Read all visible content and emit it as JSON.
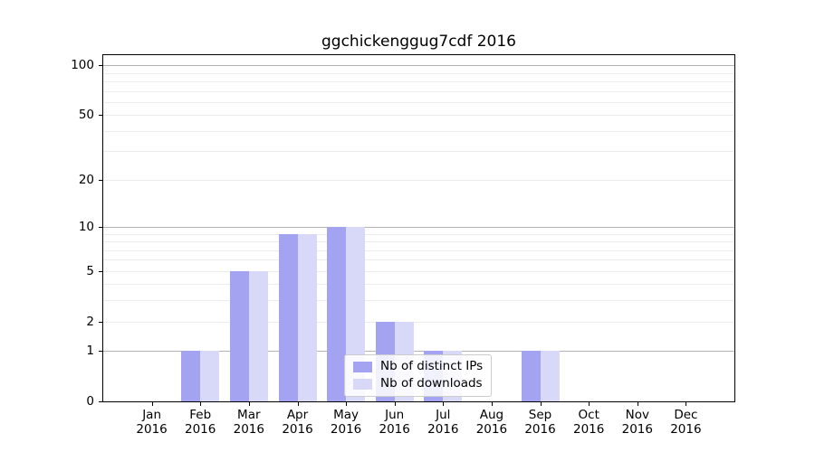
{
  "chart_data": {
    "type": "bar",
    "title": "ggchickenggug7cdf 2016",
    "categories": [
      {
        "label": "Jan",
        "sub": "2016"
      },
      {
        "label": "Feb",
        "sub": "2016"
      },
      {
        "label": "Mar",
        "sub": "2016"
      },
      {
        "label": "Apr",
        "sub": "2016"
      },
      {
        "label": "May",
        "sub": "2016"
      },
      {
        "label": "Jun",
        "sub": "2016"
      },
      {
        "label": "Jul",
        "sub": "2016"
      },
      {
        "label": "Aug",
        "sub": "2016"
      },
      {
        "label": "Sep",
        "sub": "2016"
      },
      {
        "label": "Oct",
        "sub": "2016"
      },
      {
        "label": "Nov",
        "sub": "2016"
      },
      {
        "label": "Dec",
        "sub": "2016"
      }
    ],
    "series": [
      {
        "name": "Nb of distinct IPs",
        "color": "#a3a3f1",
        "values": [
          0,
          1,
          5,
          9,
          10,
          2,
          1,
          0,
          1,
          0,
          0,
          0
        ]
      },
      {
        "name": "Nb of downloads",
        "color": "#d8d8f9",
        "values": [
          0,
          1,
          5,
          9,
          10,
          2,
          1,
          0,
          1,
          0,
          0,
          0
        ]
      }
    ],
    "yscale": "log1p",
    "ylim": [
      0,
      115
    ],
    "yticks": [
      {
        "label": "100",
        "value": 100
      },
      {
        "label": "50",
        "value": 50
      },
      {
        "label": "20",
        "value": 20
      },
      {
        "label": "10",
        "value": 10
      },
      {
        "label": "5",
        "value": 5
      },
      {
        "label": "2",
        "value": 2
      },
      {
        "label": "1",
        "value": 1
      },
      {
        "label": "0",
        "value": 0
      }
    ],
    "major_gridlines": [
      1,
      10,
      100
    ],
    "minor_gridlines": [
      2,
      3,
      4,
      5,
      6,
      7,
      8,
      9,
      20,
      30,
      40,
      50,
      60,
      70,
      80,
      90
    ],
    "grid": "on",
    "legend_position": "lower center"
  }
}
